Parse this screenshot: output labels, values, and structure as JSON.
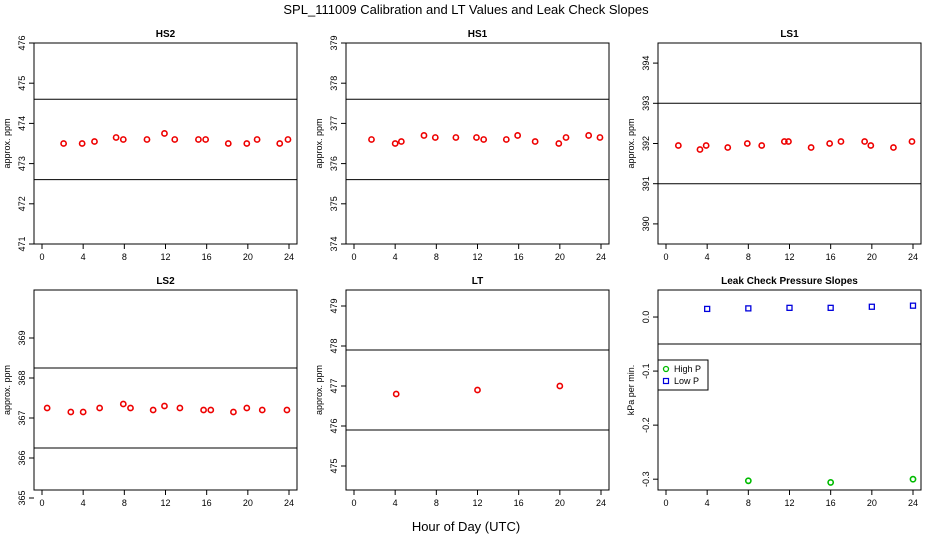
{
  "title": "SPL_111009  Calibration and LT Values and Leak Check Slopes",
  "xlabel": "Hour of Day (UTC)",
  "colors": {
    "calibration": "#ee0000",
    "high_p": "#00bb00",
    "low_p": "#0000dd",
    "axis": "#000000"
  },
  "chart_data": [
    {
      "type": "scatter",
      "title": "HS2",
      "ylabel": "approx. ppm",
      "xlim": [
        0,
        24
      ],
      "ylim": [
        471,
        476
      ],
      "x_ticks": [
        0,
        4,
        8,
        12,
        16,
        20,
        24
      ],
      "y_ticks": [
        471,
        472,
        473,
        474,
        475,
        476
      ],
      "hlines": [
        472.6,
        474.6
      ],
      "series": [
        {
          "name": "calibration",
          "color": "#ee0000",
          "x": [
            2.1,
            3.9,
            5.1,
            7.2,
            7.9,
            10.2,
            11.9,
            12.9,
            15.2,
            15.9,
            18.1,
            19.9,
            20.9,
            23.1,
            23.9
          ],
          "y": [
            473.5,
            473.5,
            473.55,
            473.65,
            473.6,
            473.6,
            473.75,
            473.6,
            473.6,
            473.6,
            473.5,
            473.5,
            473.6,
            473.5,
            473.6
          ]
        }
      ]
    },
    {
      "type": "scatter",
      "title": "HS1",
      "ylabel": "approx. ppm",
      "xlim": [
        0,
        24
      ],
      "ylim": [
        374,
        379
      ],
      "x_ticks": [
        0,
        4,
        8,
        12,
        16,
        20,
        24
      ],
      "y_ticks": [
        374,
        375,
        376,
        377,
        378,
        379
      ],
      "hlines": [
        375.6,
        377.6
      ],
      "series": [
        {
          "name": "calibration",
          "color": "#ee0000",
          "x": [
            1.7,
            4.0,
            4.6,
            6.8,
            7.9,
            9.9,
            11.9,
            12.6,
            14.8,
            15.9,
            17.6,
            19.9,
            20.6,
            22.8,
            23.9
          ],
          "y": [
            376.6,
            376.5,
            376.55,
            376.7,
            376.65,
            376.65,
            376.65,
            376.6,
            376.6,
            376.7,
            376.55,
            376.5,
            376.65,
            376.7,
            376.65
          ]
        }
      ]
    },
    {
      "type": "scatter",
      "title": "LS1",
      "ylabel": "approx. ppm",
      "xlim": [
        0,
        24
      ],
      "ylim": [
        389.5,
        394.5
      ],
      "x_ticks": [
        0,
        4,
        8,
        12,
        16,
        20,
        24
      ],
      "y_ticks": [
        390,
        391,
        392,
        393,
        394
      ],
      "hlines": [
        391,
        393
      ],
      "series": [
        {
          "name": "calibration",
          "color": "#ee0000",
          "x": [
            1.2,
            3.3,
            3.9,
            6.0,
            7.9,
            9.3,
            11.5,
            11.9,
            14.1,
            15.9,
            17.0,
            19.3,
            19.9,
            22.1,
            23.9
          ],
          "y": [
            391.95,
            391.85,
            391.95,
            391.9,
            392.0,
            391.95,
            392.05,
            392.05,
            391.9,
            392.0,
            392.05,
            392.05,
            391.95,
            391.9,
            392.05
          ]
        }
      ]
    },
    {
      "type": "scatter",
      "title": "LS2",
      "ylabel": "approx. ppm",
      "xlim": [
        0,
        24
      ],
      "ylim": [
        365.2,
        370.2
      ],
      "x_ticks": [
        0,
        4,
        8,
        12,
        16,
        20,
        24
      ],
      "y_ticks": [
        365,
        366,
        367,
        368,
        369
      ],
      "hlines": [
        366.25,
        368.25
      ],
      "series": [
        {
          "name": "calibration",
          "color": "#ee0000",
          "x": [
            0.5,
            2.8,
            4.0,
            5.6,
            7.9,
            8.6,
            10.8,
            11.9,
            13.4,
            15.7,
            16.4,
            18.6,
            19.9,
            21.4,
            23.8
          ],
          "y": [
            367.25,
            367.15,
            367.15,
            367.25,
            367.35,
            367.25,
            367.2,
            367.3,
            367.25,
            367.2,
            367.2,
            367.15,
            367.25,
            367.2,
            367.2
          ]
        }
      ]
    },
    {
      "type": "scatter",
      "title": "LT",
      "ylabel": "approx. ppm",
      "xlim": [
        0,
        24
      ],
      "ylim": [
        474.4,
        479.4
      ],
      "x_ticks": [
        0,
        4,
        8,
        12,
        16,
        20,
        24
      ],
      "y_ticks": [
        475,
        476,
        477,
        478,
        479
      ],
      "hlines": [
        475.9,
        477.9
      ],
      "series": [
        {
          "name": "calibration",
          "color": "#ee0000",
          "x": [
            4.1,
            12.0,
            20.0
          ],
          "y": [
            476.8,
            476.9,
            477.0
          ]
        }
      ]
    },
    {
      "type": "scatter",
      "title": "Leak Check Pressure Slopes",
      "ylabel": "kPa per min.",
      "xlim": [
        0,
        24
      ],
      "ylim": [
        -0.32,
        0.05
      ],
      "x_ticks": [
        0,
        4,
        8,
        12,
        16,
        20,
        24
      ],
      "y_ticks": [
        0.0,
        -0.1,
        -0.2,
        -0.3
      ],
      "y_tick_labels": [
        "0.0",
        "-0.1",
        "-0.2",
        "-0.3"
      ],
      "hlines": [
        0.05,
        -0.05
      ],
      "legend": {
        "position": "left",
        "entries": [
          "High P",
          "Low P"
        ]
      },
      "series": [
        {
          "name": "High P",
          "color": "#00bb00",
          "x": [
            8.0,
            16.0,
            24.0
          ],
          "y": [
            -0.303,
            -0.306,
            -0.3
          ]
        },
        {
          "name": "Low P",
          "color": "#0000dd",
          "x": [
            4.0,
            8.0,
            12.0,
            16.0,
            20.0,
            24.0
          ],
          "y": [
            0.015,
            0.016,
            0.017,
            0.017,
            0.019,
            0.021
          ]
        }
      ]
    }
  ]
}
